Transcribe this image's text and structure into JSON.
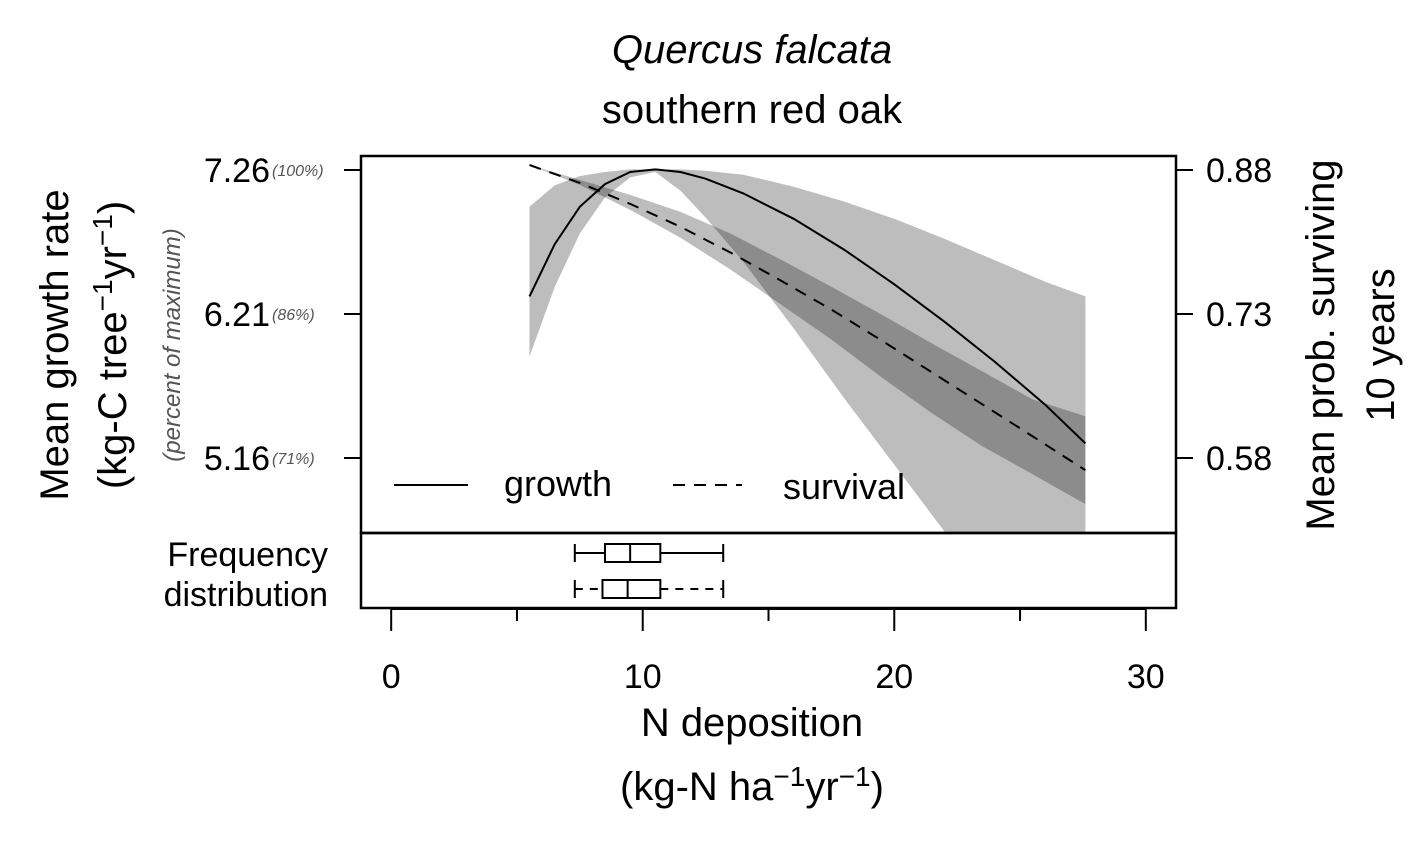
{
  "chart_data": {
    "type": "line",
    "title_species": "Quercus falcata",
    "title_common": "southern red oak",
    "xlabel_main": "N deposition",
    "xlabel_units": "(kg-N ha",
    "ylabel_left_line1": "Mean growth rate",
    "ylabel_left_line2": "(kg-C tree",
    "ylabel_left_note": "(percent of maximum)",
    "ylabel_right_line1": "Mean prob. surviving",
    "ylabel_right_line2": "10 years",
    "unit_sup": "−1",
    "unit_yr": "yr",
    "unit_close": ")",
    "xlim": [
      -1.2,
      31.2
    ],
    "xticks": [
      0,
      10,
      20,
      30
    ],
    "xtick_labels": [
      "0",
      "10",
      "20",
      "30"
    ],
    "ylim_left": [
      4.54,
      7.36
    ],
    "yticks_left": [
      {
        "value": 7.26,
        "label": "7.26",
        "pct": "(100%)"
      },
      {
        "value": 6.21,
        "label": "6.21",
        "pct": "(86%)"
      },
      {
        "value": 5.16,
        "label": "5.16",
        "pct": "(71%)"
      }
    ],
    "yticks_right": [
      {
        "value": 0.88,
        "label": "0.88"
      },
      {
        "value": 0.73,
        "label": "0.73"
      },
      {
        "value": 0.58,
        "label": "0.58"
      }
    ],
    "series": [
      {
        "name": "growth",
        "style": "solid",
        "x": [
          5.5,
          6.5,
          7.5,
          8.5,
          9.5,
          10.5,
          11.5,
          12.5,
          14,
          16,
          18,
          20,
          22,
          24,
          26,
          27.6
        ],
        "y": [
          6.31,
          6.7,
          6.98,
          7.15,
          7.24,
          7.26,
          7.24,
          7.19,
          7.08,
          6.89,
          6.66,
          6.4,
          6.12,
          5.82,
          5.5,
          5.21
        ],
        "lower": [
          5.86,
          6.38,
          6.78,
          7.05,
          7.2,
          7.24,
          7.1,
          6.9,
          6.57,
          6.07,
          5.55,
          5.05,
          4.55,
          4.54,
          4.54,
          4.54
        ],
        "upper": [
          6.98,
          7.14,
          7.21,
          7.24,
          7.26,
          7.26,
          7.26,
          7.25,
          7.22,
          7.13,
          7.02,
          6.89,
          6.74,
          6.58,
          6.42,
          6.31
        ]
      },
      {
        "name": "survival",
        "style": "dashed",
        "x": [
          5.5,
          7.5,
          9.5,
          11.5,
          13.5,
          15.5,
          17.5,
          19.5,
          21.5,
          23.5,
          25.5,
          27.6
        ],
        "y": [
          0.885,
          0.867,
          0.846,
          0.823,
          0.797,
          0.769,
          0.74,
          0.709,
          0.677,
          0.645,
          0.613,
          0.579
        ],
        "lower": [
          0.885,
          0.865,
          0.84,
          0.812,
          0.78,
          0.745,
          0.71,
          0.672,
          0.636,
          0.603,
          0.575,
          0.545
        ],
        "upper": [
          0.885,
          0.87,
          0.855,
          0.838,
          0.816,
          0.79,
          0.763,
          0.735,
          0.706,
          0.678,
          0.65,
          0.633
        ]
      }
    ],
    "survival_ylim": [
      0.516,
      0.894
    ],
    "legend_position": "bottom-left",
    "frequency_label_line1": "Frequency",
    "frequency_label_line2": "distribution",
    "boxplots": [
      {
        "series": "growth",
        "style": "solid",
        "whisker_low": 7.3,
        "q1": 8.5,
        "median": 9.5,
        "q3": 10.7,
        "whisker_high": 13.2
      },
      {
        "series": "survival",
        "style": "dashed",
        "whisker_low": 7.3,
        "q1": 8.4,
        "median": 9.4,
        "q3": 10.7,
        "whisker_high": 13.2
      }
    ],
    "colors": {
      "band_light": "#bdbdbd",
      "band_overlap": "#8c8c8c",
      "line": "#000000"
    }
  }
}
